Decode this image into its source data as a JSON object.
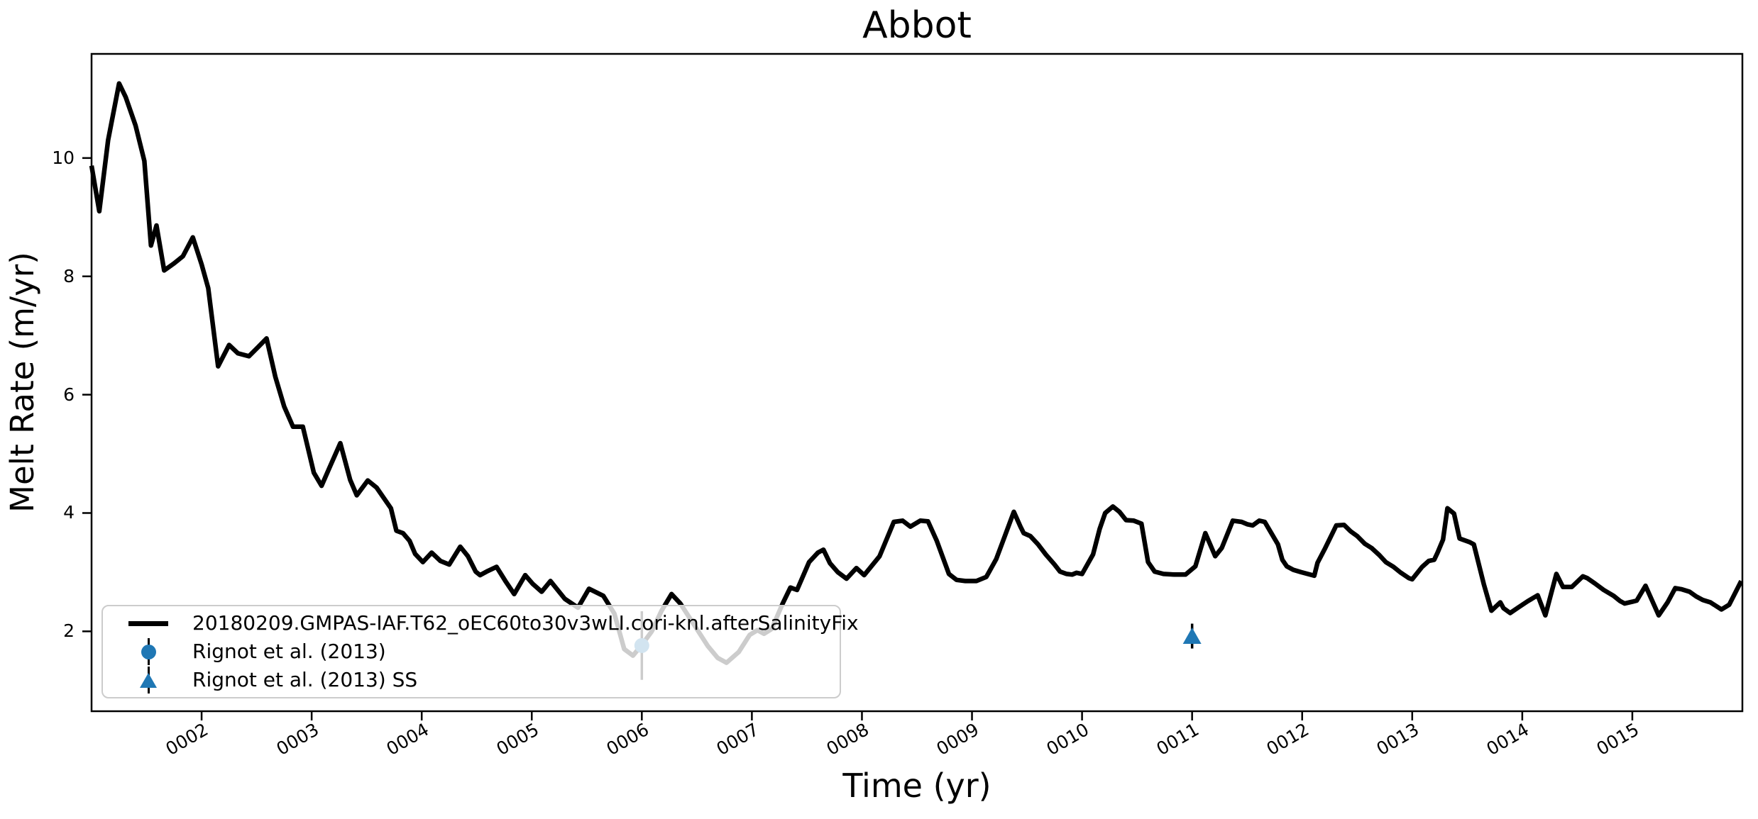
{
  "title": "Abbot",
  "xlabel": "Time (yr)",
  "ylabel": "Melt Rate (m/yr)",
  "colors": {
    "series_line": "#000000",
    "observation_marker": "#1f77b4",
    "legend_border": "#cccccc",
    "axis": "#000000"
  },
  "legend": {
    "entries": [
      {
        "label": "20180209.GMPAS-IAF.T62_oEC60to30v3wLI.cori-knl.afterSalinityFix",
        "swatch": "thick-black-line"
      },
      {
        "label": "Rignot et al. (2013)",
        "swatch": "blue-circle-errorbar"
      },
      {
        "label": "Rignot et al. (2013) SS",
        "swatch": "blue-triangle-errorbar"
      }
    ]
  },
  "chart_data": {
    "type": "line",
    "title": "Abbot",
    "xlabel": "Time (yr)",
    "ylabel": "Melt Rate (m/yr)",
    "xlim": [
      1.0,
      16.0
    ],
    "ylim": [
      0.65,
      11.76
    ],
    "grid": false,
    "legend_position": "lower left",
    "x_ticks": [
      {
        "value": 2,
        "label": "0002"
      },
      {
        "value": 3,
        "label": "0003"
      },
      {
        "value": 4,
        "label": "0004"
      },
      {
        "value": 5,
        "label": "0005"
      },
      {
        "value": 6,
        "label": "0006"
      },
      {
        "value": 7,
        "label": "0007"
      },
      {
        "value": 8,
        "label": "0008"
      },
      {
        "value": 9,
        "label": "0009"
      },
      {
        "value": 10,
        "label": "0010"
      },
      {
        "value": 11,
        "label": "0011"
      },
      {
        "value": 12,
        "label": "0012"
      },
      {
        "value": 13,
        "label": "0013"
      },
      {
        "value": 14,
        "label": "0014"
      },
      {
        "value": 15,
        "label": "0015"
      }
    ],
    "y_ticks": [
      {
        "value": 2,
        "label": "2"
      },
      {
        "value": 4,
        "label": "4"
      },
      {
        "value": 6,
        "label": "6"
      },
      {
        "value": 8,
        "label": "8"
      },
      {
        "value": 10,
        "label": "10"
      }
    ],
    "series": [
      {
        "name": "20180209.GMPAS-IAF.T62_oEC60to30v3wLI.cori-knl.afterSalinityFix",
        "color": "#000000",
        "linewidth": 6.5,
        "points": [
          [
            1.0,
            9.87
          ],
          [
            1.07,
            9.1
          ],
          [
            1.15,
            10.3
          ],
          [
            1.25,
            11.26
          ],
          [
            1.31,
            11.03
          ],
          [
            1.4,
            10.55
          ],
          [
            1.48,
            9.95
          ],
          [
            1.54,
            8.52
          ],
          [
            1.59,
            8.86
          ],
          [
            1.66,
            8.1
          ],
          [
            1.75,
            8.22
          ],
          [
            1.83,
            8.34
          ],
          [
            1.92,
            8.66
          ],
          [
            2.0,
            8.2
          ],
          [
            2.06,
            7.8
          ],
          [
            2.15,
            6.48
          ],
          [
            2.25,
            6.84
          ],
          [
            2.33,
            6.7
          ],
          [
            2.43,
            6.65
          ],
          [
            2.51,
            6.8
          ],
          [
            2.59,
            6.95
          ],
          [
            2.67,
            6.3
          ],
          [
            2.75,
            5.8
          ],
          [
            2.83,
            5.46
          ],
          [
            2.92,
            5.46
          ],
          [
            3.02,
            4.68
          ],
          [
            3.09,
            4.46
          ],
          [
            3.17,
            4.8
          ],
          [
            3.26,
            5.18
          ],
          [
            3.35,
            4.56
          ],
          [
            3.41,
            4.3
          ],
          [
            3.51,
            4.55
          ],
          [
            3.59,
            4.43
          ],
          [
            3.72,
            4.08
          ],
          [
            3.77,
            3.7
          ],
          [
            3.83,
            3.66
          ],
          [
            3.89,
            3.53
          ],
          [
            3.94,
            3.31
          ],
          [
            4.01,
            3.17
          ],
          [
            4.09,
            3.33
          ],
          [
            4.17,
            3.19
          ],
          [
            4.25,
            3.13
          ],
          [
            4.35,
            3.43
          ],
          [
            4.42,
            3.27
          ],
          [
            4.49,
            3.01
          ],
          [
            4.53,
            2.95
          ],
          [
            4.6,
            3.02
          ],
          [
            4.68,
            3.09
          ],
          [
            4.76,
            2.85
          ],
          [
            4.84,
            2.63
          ],
          [
            4.94,
            2.95
          ],
          [
            5.01,
            2.8
          ],
          [
            5.09,
            2.67
          ],
          [
            5.17,
            2.85
          ],
          [
            5.3,
            2.55
          ],
          [
            5.42,
            2.4
          ],
          [
            5.52,
            2.72
          ],
          [
            5.65,
            2.6
          ],
          [
            5.75,
            2.3
          ],
          [
            5.84,
            1.7
          ],
          [
            5.92,
            1.59
          ],
          [
            6.0,
            1.77
          ],
          [
            6.09,
            2.0
          ],
          [
            6.18,
            2.35
          ],
          [
            6.27,
            2.63
          ],
          [
            6.35,
            2.47
          ],
          [
            6.51,
            2.01
          ],
          [
            6.6,
            1.75
          ],
          [
            6.69,
            1.55
          ],
          [
            6.77,
            1.47
          ],
          [
            6.88,
            1.65
          ],
          [
            6.98,
            1.94
          ],
          [
            7.05,
            2.02
          ],
          [
            7.11,
            1.96
          ],
          [
            7.18,
            2.04
          ],
          [
            7.28,
            2.47
          ],
          [
            7.35,
            2.74
          ],
          [
            7.41,
            2.7
          ],
          [
            7.52,
            3.17
          ],
          [
            7.6,
            3.33
          ],
          [
            7.65,
            3.38
          ],
          [
            7.71,
            3.15
          ],
          [
            7.78,
            3.0
          ],
          [
            7.86,
            2.89
          ],
          [
            7.95,
            3.07
          ],
          [
            8.02,
            2.95
          ],
          [
            8.16,
            3.27
          ],
          [
            8.29,
            3.85
          ],
          [
            8.37,
            3.87
          ],
          [
            8.44,
            3.77
          ],
          [
            8.53,
            3.87
          ],
          [
            8.6,
            3.86
          ],
          [
            8.68,
            3.53
          ],
          [
            8.79,
            2.97
          ],
          [
            8.86,
            2.87
          ],
          [
            8.94,
            2.85
          ],
          [
            9.04,
            2.85
          ],
          [
            9.13,
            2.92
          ],
          [
            9.22,
            3.22
          ],
          [
            9.28,
            3.52
          ],
          [
            9.38,
            4.02
          ],
          [
            9.44,
            3.77
          ],
          [
            9.47,
            3.66
          ],
          [
            9.53,
            3.61
          ],
          [
            9.6,
            3.47
          ],
          [
            9.67,
            3.3
          ],
          [
            9.75,
            3.13
          ],
          [
            9.8,
            3.01
          ],
          [
            9.86,
            2.97
          ],
          [
            9.91,
            2.96
          ],
          [
            9.95,
            2.99
          ],
          [
            10.0,
            2.97
          ],
          [
            10.1,
            3.3
          ],
          [
            10.16,
            3.73
          ],
          [
            10.21,
            4.0
          ],
          [
            10.28,
            4.11
          ],
          [
            10.34,
            4.02
          ],
          [
            10.4,
            3.88
          ],
          [
            10.47,
            3.87
          ],
          [
            10.54,
            3.82
          ],
          [
            10.6,
            3.17
          ],
          [
            10.66,
            3.01
          ],
          [
            10.74,
            2.97
          ],
          [
            10.84,
            2.96
          ],
          [
            10.94,
            2.96
          ],
          [
            11.03,
            3.1
          ],
          [
            11.12,
            3.66
          ],
          [
            11.21,
            3.27
          ],
          [
            11.27,
            3.41
          ],
          [
            11.37,
            3.87
          ],
          [
            11.45,
            3.85
          ],
          [
            11.5,
            3.81
          ],
          [
            11.55,
            3.79
          ],
          [
            11.61,
            3.87
          ],
          [
            11.66,
            3.85
          ],
          [
            11.71,
            3.69
          ],
          [
            11.78,
            3.47
          ],
          [
            11.82,
            3.21
          ],
          [
            11.86,
            3.1
          ],
          [
            11.92,
            3.04
          ],
          [
            11.99,
            3.0
          ],
          [
            12.05,
            2.97
          ],
          [
            12.11,
            2.94
          ],
          [
            12.14,
            3.16
          ],
          [
            12.21,
            3.41
          ],
          [
            12.31,
            3.79
          ],
          [
            12.38,
            3.8
          ],
          [
            12.44,
            3.69
          ],
          [
            12.5,
            3.61
          ],
          [
            12.57,
            3.48
          ],
          [
            12.63,
            3.41
          ],
          [
            12.7,
            3.29
          ],
          [
            12.76,
            3.17
          ],
          [
            12.83,
            3.09
          ],
          [
            12.89,
            3.0
          ],
          [
            12.97,
            2.9
          ],
          [
            13.0,
            2.88
          ],
          [
            13.09,
            3.09
          ],
          [
            13.15,
            3.19
          ],
          [
            13.2,
            3.21
          ],
          [
            13.23,
            3.33
          ],
          [
            13.28,
            3.55
          ],
          [
            13.32,
            4.08
          ],
          [
            13.38,
            3.99
          ],
          [
            13.43,
            3.57
          ],
          [
            13.52,
            3.51
          ],
          [
            13.56,
            3.47
          ],
          [
            13.65,
            2.8
          ],
          [
            13.72,
            2.35
          ],
          [
            13.8,
            2.49
          ],
          [
            13.83,
            2.39
          ],
          [
            13.89,
            2.31
          ],
          [
            13.97,
            2.41
          ],
          [
            14.05,
            2.51
          ],
          [
            14.14,
            2.61
          ],
          [
            14.21,
            2.27
          ],
          [
            14.31,
            2.97
          ],
          [
            14.37,
            2.75
          ],
          [
            14.45,
            2.75
          ],
          [
            14.55,
            2.93
          ],
          [
            14.59,
            2.9
          ],
          [
            14.66,
            2.81
          ],
          [
            14.74,
            2.7
          ],
          [
            14.83,
            2.6
          ],
          [
            14.89,
            2.51
          ],
          [
            14.93,
            2.47
          ],
          [
            15.0,
            2.5
          ],
          [
            15.04,
            2.52
          ],
          [
            15.12,
            2.77
          ],
          [
            15.24,
            2.27
          ],
          [
            15.32,
            2.49
          ],
          [
            15.39,
            2.73
          ],
          [
            15.45,
            2.71
          ],
          [
            15.52,
            2.67
          ],
          [
            15.58,
            2.59
          ],
          [
            15.64,
            2.53
          ],
          [
            15.71,
            2.49
          ],
          [
            15.81,
            2.37
          ],
          [
            15.88,
            2.45
          ],
          [
            15.99,
            2.85
          ]
        ]
      }
    ],
    "observations": [
      {
        "name": "Rignot et al. (2013)",
        "marker": "circle",
        "color": "#1f77b4",
        "x": 6.0,
        "y": 1.76,
        "yerr": 0.58
      },
      {
        "name": "Rignot et al. (2013) SS",
        "marker": "triangle-up",
        "color": "#1f77b4",
        "x": 11.0,
        "y": 1.92,
        "yerr": 0.21
      }
    ]
  }
}
